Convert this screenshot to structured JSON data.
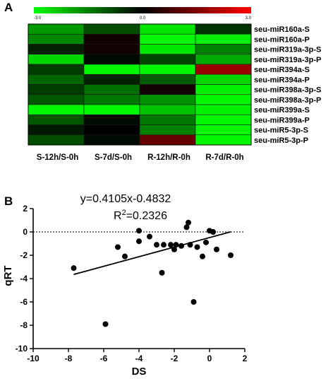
{
  "panel_a_label": "A",
  "panel_b_label": "B",
  "colors": {
    "low": "#00ff00",
    "mid": "#000000",
    "high": "#ff0000",
    "point": "#000000"
  },
  "chart_data": [
    {
      "type": "heatmap",
      "colorbar": {
        "min": -3.0,
        "mid": 0.0,
        "max": 3.0,
        "min_label": "-3.0",
        "mid_label": "0.0",
        "max_label": "3.0"
      },
      "columns": [
        "S-12h/S-0h",
        "S-7d/S-0h",
        "R-12h/R-0h",
        "R-7d/R-0h"
      ],
      "rows": [
        "seu-miR160a-S",
        "seu-miR160a-P",
        "seu-miR319a-3p-S",
        "seu-miR319a-3p-P",
        "seu-miR394a-S",
        "seu-miR394a-P",
        "seu-miR398a-3p-S",
        "seu-miR398a-3p-P",
        "seu-miR399a-S",
        "seu-miR399a-P",
        "seu-miR5-3p-S",
        "seu-miR5-3p-P"
      ],
      "values": [
        [
          -1.8,
          -0.9,
          -2.7,
          -0.6
        ],
        [
          -1.6,
          0.2,
          -2.9,
          -2.8
        ],
        [
          -0.4,
          0.2,
          -2.7,
          -1.5
        ],
        [
          -2.5,
          -0.1,
          -0.8,
          -2.0
        ],
        [
          -0.7,
          -2.9,
          -2.9,
          1.8
        ],
        [
          -1.2,
          -0.4,
          -1.1,
          -2.5
        ],
        [
          -0.7,
          -1.3,
          0.2,
          -2.8
        ],
        [
          -1.0,
          -1.4,
          -1.7,
          -2.9
        ],
        [
          -2.9,
          -2.9,
          -2.3,
          -2.8
        ],
        [
          -1.0,
          -0.1,
          -1.4,
          -2.9
        ],
        [
          -0.3,
          0.0,
          -1.5,
          -2.9
        ],
        [
          -0.9,
          -0.1,
          1.2,
          -2.9
        ]
      ]
    },
    {
      "type": "scatter",
      "equation": "y=0.4105x-0.4832",
      "r2_label": "R",
      "r2_sup": "2",
      "r2_value": "=0.2326",
      "xlabel": "DS",
      "ylabel": "qRT",
      "xlim": [
        -10,
        2
      ],
      "ylim": [
        -10,
        2
      ],
      "xticks": [
        -10,
        -8,
        -6,
        -4,
        -2,
        0,
        2
      ],
      "yticks": [
        -10,
        -8,
        -6,
        -4,
        -2,
        0,
        2
      ],
      "reference_line_y": 0,
      "fit": {
        "slope": 0.4105,
        "intercept": -0.4832,
        "x_range": [
          -7.7,
          1.2
        ]
      },
      "points": [
        [
          -7.7,
          -3.1
        ],
        [
          -5.9,
          -7.9
        ],
        [
          -5.2,
          -1.3
        ],
        [
          -4.8,
          -2.1
        ],
        [
          -4.0,
          0.1
        ],
        [
          -4.0,
          -0.8
        ],
        [
          -3.4,
          -0.4
        ],
        [
          -3.0,
          -1.1
        ],
        [
          -2.6,
          -1.1
        ],
        [
          -2.7,
          -3.5
        ],
        [
          -2.2,
          -1.1
        ],
        [
          -2.0,
          -1.5
        ],
        [
          -1.9,
          -1.1
        ],
        [
          -1.6,
          -1.2
        ],
        [
          -1.3,
          0.4
        ],
        [
          -1.2,
          0.8
        ],
        [
          -1.1,
          -1.1
        ],
        [
          -0.9,
          -6.0
        ],
        [
          -0.7,
          -1.3
        ],
        [
          -0.4,
          -2.1
        ],
        [
          -0.2,
          -0.9
        ],
        [
          0.0,
          0.1
        ],
        [
          0.2,
          0.0
        ],
        [
          0.4,
          -1.5
        ],
        [
          1.2,
          -2.0
        ]
      ]
    }
  ]
}
